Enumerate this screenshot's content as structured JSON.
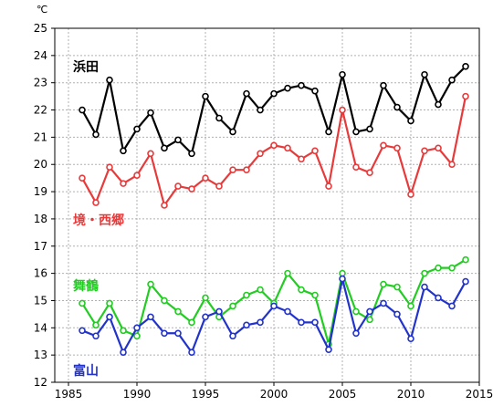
{
  "chart_data": {
    "type": "line",
    "unit": "℃",
    "xlim": [
      1984,
      2015
    ],
    "ylim": [
      12,
      25
    ],
    "xticks": [
      1985,
      1990,
      1995,
      2000,
      2005,
      2010,
      2015
    ],
    "yticks": [
      12,
      13,
      14,
      15,
      16,
      17,
      18,
      19,
      20,
      21,
      22,
      23,
      24,
      25
    ],
    "grid": true,
    "x": [
      1986,
      1987,
      1988,
      1989,
      1990,
      1991,
      1992,
      1993,
      1994,
      1995,
      1996,
      1997,
      1998,
      1999,
      2000,
      2001,
      2002,
      2003,
      2004,
      2005,
      2006,
      2007,
      2008,
      2009,
      2010,
      2011,
      2012,
      2013,
      2014
    ],
    "series": [
      {
        "name": "浜田",
        "color": "#000000",
        "values": [
          22.0,
          21.1,
          23.1,
          20.5,
          21.3,
          21.9,
          20.6,
          20.9,
          20.4,
          22.5,
          21.7,
          21.2,
          22.6,
          22.0,
          22.6,
          22.8,
          22.9,
          22.7,
          21.2,
          23.3,
          21.2,
          21.3,
          22.9,
          22.1,
          21.6,
          23.3,
          22.2,
          23.1,
          23.6
        ]
      },
      {
        "name": "境・西郷",
        "color": "#e83a3a",
        "values": [
          19.5,
          18.6,
          19.9,
          19.3,
          19.6,
          20.4,
          18.5,
          19.2,
          19.1,
          19.5,
          19.2,
          19.8,
          19.8,
          20.4,
          20.7,
          20.6,
          20.2,
          20.5,
          19.2,
          22.0,
          19.9,
          19.7,
          20.7,
          20.6,
          18.9,
          20.5,
          20.6,
          20.0,
          22.5
        ]
      },
      {
        "name": "舞鶴",
        "color": "#22cc22",
        "values": [
          14.9,
          14.1,
          14.9,
          13.9,
          13.7,
          15.6,
          15.0,
          14.6,
          14.2,
          15.1,
          14.4,
          14.8,
          15.2,
          15.4,
          14.9,
          16.0,
          15.4,
          15.2,
          13.4,
          16.0,
          14.6,
          14.3,
          15.6,
          15.5,
          14.8,
          16.0,
          16.2,
          16.2,
          16.5
        ]
      },
      {
        "name": "富山",
        "color": "#2233cc",
        "values": [
          13.9,
          13.7,
          14.4,
          13.1,
          14.0,
          14.4,
          13.8,
          13.8,
          13.1,
          14.4,
          14.6,
          13.7,
          14.1,
          14.2,
          14.8,
          14.6,
          14.2,
          14.2,
          13.2,
          15.8,
          13.8,
          14.6,
          14.9,
          14.5,
          13.6,
          15.5,
          15.1,
          14.8,
          15.7
        ]
      }
    ]
  }
}
